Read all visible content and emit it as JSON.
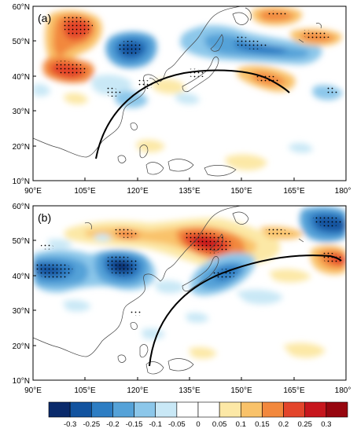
{
  "panels": [
    {
      "label": "(a)",
      "lat_ticks": [
        "60°N",
        "50°N",
        "40°N",
        "30°N",
        "20°N",
        "10°N"
      ],
      "lon_ticks": [
        "90°E",
        "105°E",
        "120°E",
        "135°E",
        "150°E",
        "165°E",
        "180°"
      ],
      "extent": {
        "lon": [
          90,
          180
        ],
        "lat": [
          10,
          60
        ]
      },
      "anomalies": [
        {
          "lon": 104,
          "lat": 51,
          "value": 0.25
        },
        {
          "lon": 99,
          "lat": 42,
          "value": 0.25
        },
        {
          "lon": 118,
          "lat": 46,
          "value": -0.3
        },
        {
          "lon": 143,
          "lat": 46,
          "value": -0.2
        },
        {
          "lon": 146,
          "lat": 56,
          "value": 0.2
        },
        {
          "lon": 164,
          "lat": 50,
          "value": 0.15
        },
        {
          "lon": 157,
          "lat": 38,
          "value": 0.15
        }
      ],
      "wave_path": [
        [
          111,
          16
        ],
        [
          118,
          31
        ],
        [
          132,
          40
        ],
        [
          147,
          40
        ],
        [
          160,
          36
        ]
      ]
    },
    {
      "label": "(b)",
      "lat_ticks": [
        "60°N",
        "50°N",
        "40°N",
        "30°N",
        "20°N",
        "10°N"
      ],
      "lon_ticks": [
        "90°E",
        "105°E",
        "120°E",
        "135°E",
        "150°E",
        "165°E",
        "180°"
      ],
      "extent": {
        "lon": [
          90,
          180
        ],
        "lat": [
          10,
          60
        ]
      },
      "anomalies": [
        {
          "lon": 98,
          "lat": 39,
          "value": -0.3
        },
        {
          "lon": 118,
          "lat": 40,
          "value": -0.3
        },
        {
          "lon": 140,
          "lat": 47,
          "value": 0.25
        },
        {
          "lon": 113,
          "lat": 48,
          "value": 0.2
        },
        {
          "lon": 149,
          "lat": 39,
          "value": -0.2
        },
        {
          "lon": 175,
          "lat": 55,
          "value": -0.25
        },
        {
          "lon": 176,
          "lat": 43,
          "value": 0.2
        },
        {
          "lon": 157,
          "lat": 51,
          "value": 0.1
        }
      ],
      "wave_path": [
        [
          121,
          14
        ],
        [
          128,
          29
        ],
        [
          145,
          42
        ],
        [
          163,
          46
        ],
        [
          177,
          44
        ]
      ]
    }
  ],
  "colorbar": {
    "ticks": [
      "-0.3",
      "-0.25",
      "-0.2",
      "-0.15",
      "-0.1",
      "-0.05",
      "0",
      "0.05",
      "0.1",
      "0.15",
      "0.2",
      "0.25",
      "0.3"
    ],
    "colors": [
      "#0a2a6b",
      "#12539f",
      "#2d7dc3",
      "#55a2d8",
      "#8cc7ea",
      "#c9e8f6",
      "#ffffff",
      "#ffffff",
      "#fce8a6",
      "#f9c26a",
      "#f2883d",
      "#e3452b",
      "#c7161d",
      "#97060f"
    ]
  }
}
